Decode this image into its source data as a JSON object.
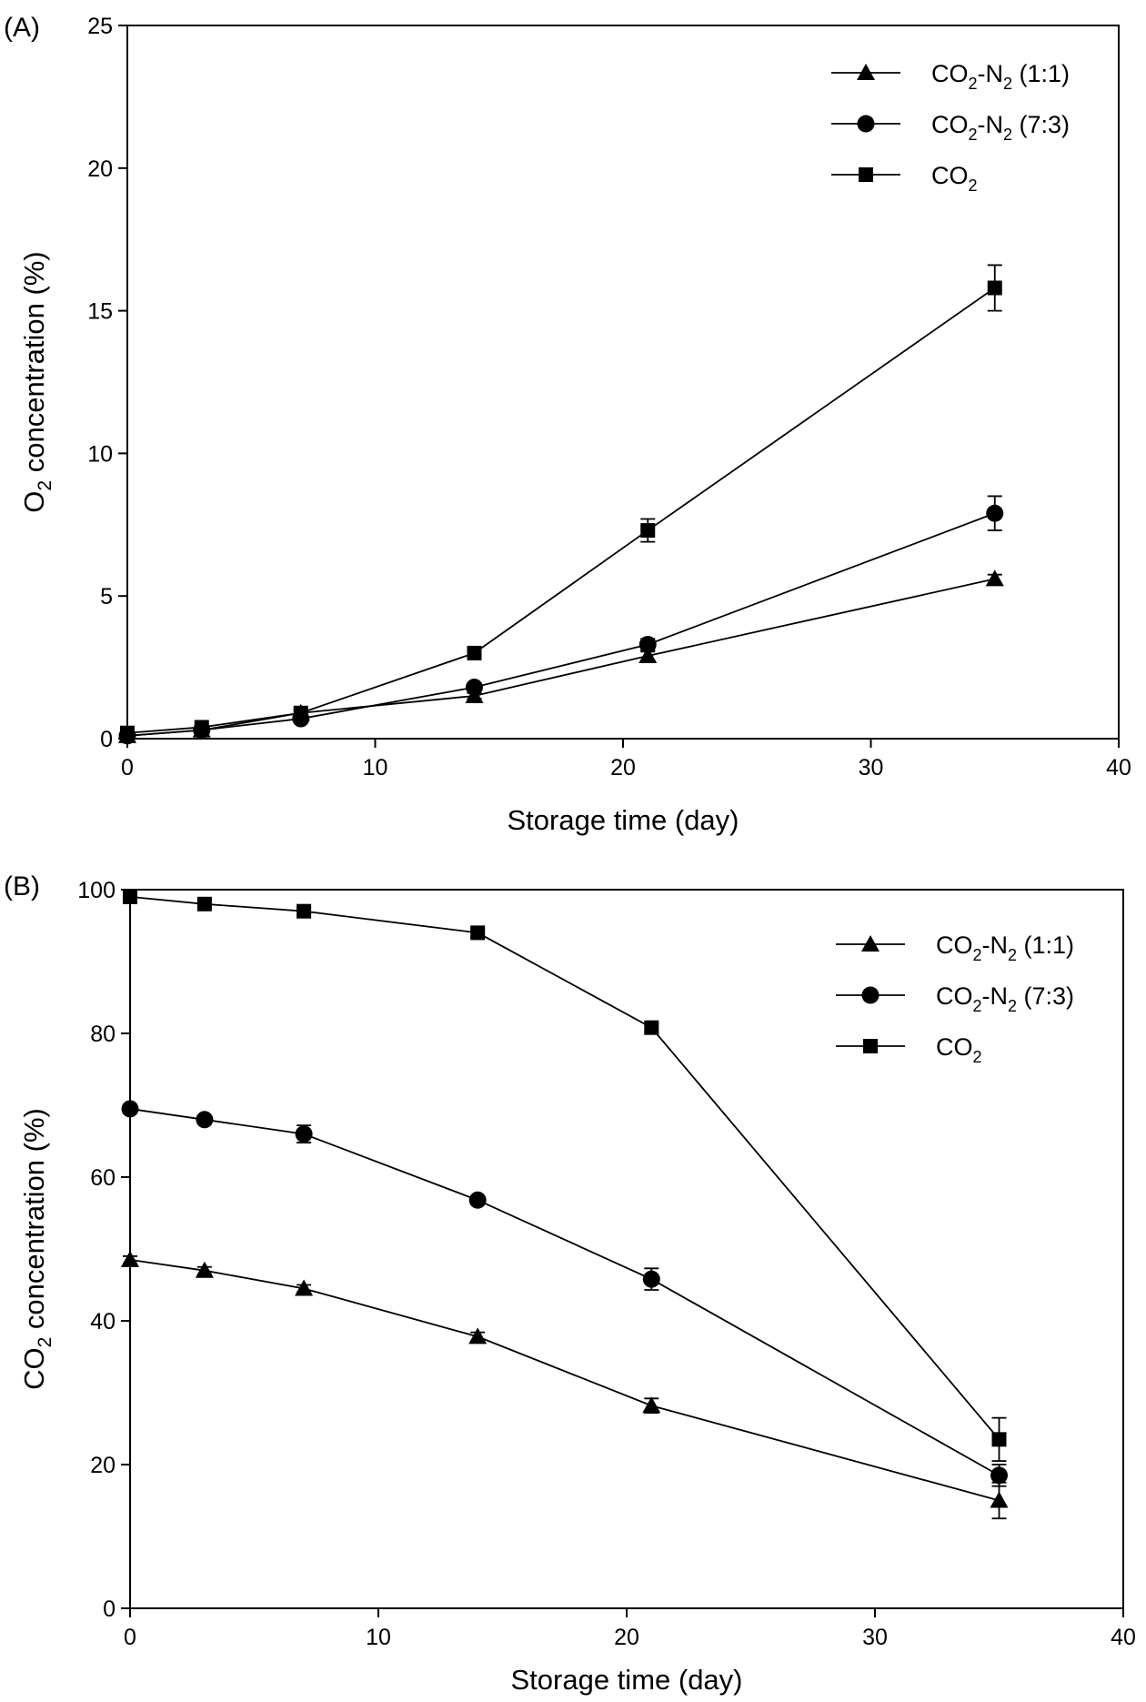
{
  "chart_data": [
    {
      "panel_label": "(A)",
      "type": "line",
      "xlabel": "Storage time (day)",
      "ylabel": {
        "base": "O",
        "sub": "2",
        "rest": " concentration (%)"
      },
      "xlim": [
        0,
        40
      ],
      "ylim": [
        0,
        25
      ],
      "xticks": [
        0,
        10,
        20,
        30,
        40
      ],
      "yticks": [
        0,
        5,
        10,
        15,
        20,
        25
      ],
      "legend_position": "top-right",
      "x": [
        0,
        3,
        7,
        14,
        21,
        35
      ],
      "series": [
        {
          "name": {
            "base": "CO",
            "sub1": "2",
            "mid": "-N",
            "sub2": "2",
            "rest": " (1:1)"
          },
          "marker": "triangle",
          "values": [
            0.1,
            0.3,
            0.9,
            1.5,
            2.9,
            5.6
          ],
          "errors": [
            0.05,
            0.05,
            0.1,
            0.1,
            0.15,
            0.15
          ]
        },
        {
          "name": {
            "base": "CO",
            "sub1": "2",
            "mid": "-N",
            "sub2": "2",
            "rest": " (7:3)"
          },
          "marker": "circle",
          "values": [
            0.1,
            0.3,
            0.7,
            1.8,
            3.3,
            7.9
          ],
          "errors": [
            0.05,
            0.05,
            0.1,
            0.1,
            0.2,
            0.6
          ]
        },
        {
          "name": {
            "base": "CO",
            "sub1": "2",
            "mid": "",
            "sub2": "",
            "rest": ""
          },
          "marker": "square",
          "values": [
            0.2,
            0.4,
            0.9,
            3.0,
            7.3,
            15.8
          ],
          "errors": [
            0.05,
            0.05,
            0.1,
            0.1,
            0.4,
            0.8
          ]
        }
      ]
    },
    {
      "panel_label": "(B)",
      "type": "line",
      "xlabel": "Storage time (day)",
      "ylabel": {
        "base": "CO",
        "sub": "2",
        "rest": " concentration (%)"
      },
      "xlim": [
        0,
        40
      ],
      "ylim": [
        0,
        100
      ],
      "xticks": [
        0,
        10,
        20,
        30,
        40
      ],
      "yticks": [
        0,
        20,
        40,
        60,
        80,
        100
      ],
      "legend_position": "top-right",
      "x": [
        0,
        3,
        7,
        14,
        21,
        35
      ],
      "series": [
        {
          "name": {
            "base": "CO",
            "sub1": "2",
            "mid": "-N",
            "sub2": "2",
            "rest": " (1:1)"
          },
          "marker": "triangle",
          "values": [
            48.5,
            47,
            44.5,
            37.8,
            28.2,
            15
          ],
          "errors": [
            0.5,
            0.5,
            0.5,
            0.6,
            1.0,
            2.5
          ]
        },
        {
          "name": {
            "base": "CO",
            "sub1": "2",
            "mid": "-N",
            "sub2": "2",
            "rest": " (7:3)"
          },
          "marker": "circle",
          "values": [
            69.5,
            68,
            66,
            56.8,
            45.8,
            18.5
          ],
          "errors": [
            0.5,
            0.5,
            1.2,
            0.5,
            1.5,
            1.5
          ]
        },
        {
          "name": {
            "base": "CO",
            "sub1": "2",
            "mid": "",
            "sub2": "",
            "rest": ""
          },
          "marker": "square",
          "values": [
            99,
            98,
            97,
            94,
            80.8,
            23.5
          ],
          "errors": [
            0.5,
            0.5,
            0.5,
            0.6,
            0.6,
            3.0
          ]
        }
      ]
    }
  ]
}
